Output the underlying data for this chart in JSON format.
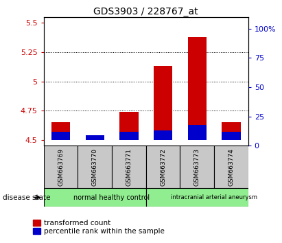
{
  "title": "GDS3903 / 228767_at",
  "samples": [
    "GSM663769",
    "GSM663770",
    "GSM663771",
    "GSM663772",
    "GSM663773",
    "GSM663774"
  ],
  "red_values": [
    4.65,
    4.51,
    4.74,
    5.13,
    5.38,
    4.65
  ],
  "blue_values": [
    4.57,
    4.54,
    4.57,
    4.58,
    4.63,
    4.57
  ],
  "base": 4.5,
  "ylim_left": [
    4.45,
    5.55
  ],
  "yticks_left": [
    4.5,
    4.75,
    5.0,
    5.25,
    5.5
  ],
  "ytick_labels_left": [
    "4.5",
    "4.75",
    "5",
    "5.25",
    "5.5"
  ],
  "ylim_right": [
    0,
    110
  ],
  "yticks_right": [
    0,
    25,
    50,
    75,
    100
  ],
  "ytick_labels_right": [
    "0",
    "25",
    "50",
    "75",
    "100%"
  ],
  "group_box_color": "#c8c8c8",
  "plot_bg_color": "#ffffff",
  "bar_width": 0.55,
  "red_color": "#cc0000",
  "blue_color": "#0000cc",
  "disease_state_label": "disease state",
  "legend_red_label": "transformed count",
  "legend_blue_label": "percentile rank within the sample",
  "left_tick_color": "#cc0000",
  "right_tick_color": "#0000cc",
  "title_fontsize": 10,
  "tick_fontsize": 8,
  "group_green": "#90ee90",
  "group_labels": [
    "normal healthy control",
    "intracranial arterial aneurysm"
  ],
  "group_starts": [
    0,
    3
  ],
  "group_ends": [
    3,
    6
  ]
}
